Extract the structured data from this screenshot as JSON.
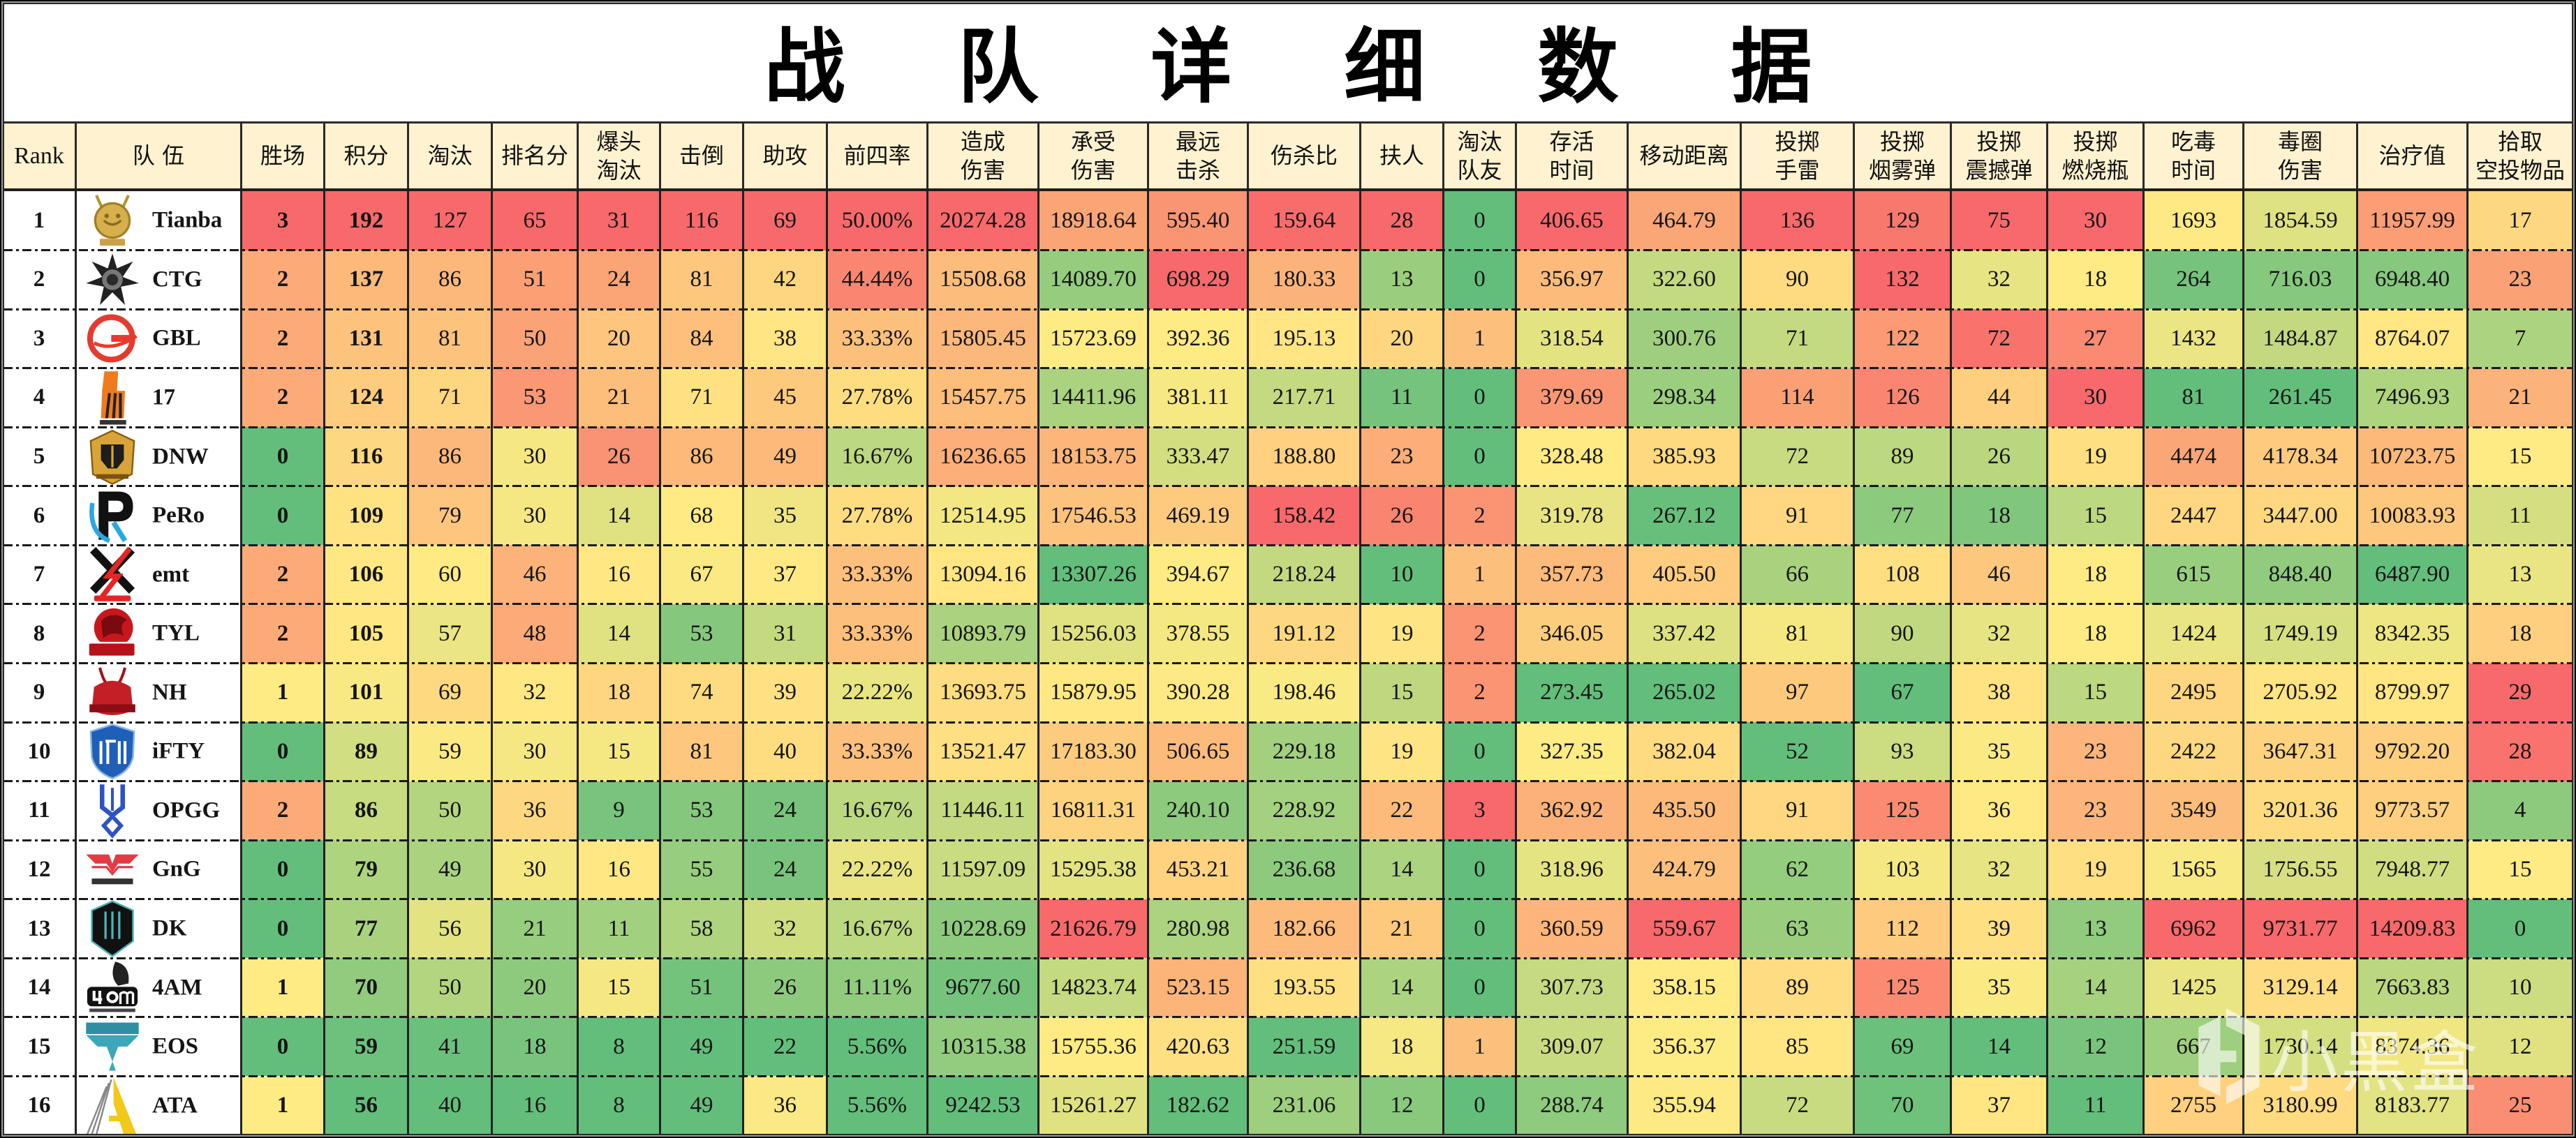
{
  "chart_data": {
    "type": "heatmap",
    "title": "战队详细数据",
    "color_scale": {
      "kind": "3-color",
      "red": "#F8696B",
      "yellow": "#FFEB84",
      "green": "#63BE7B",
      "midpoint": "percentile 50"
    },
    "columns": [
      {
        "key": "rank",
        "lines": [
          "Rank"
        ]
      },
      {
        "key": "team",
        "lines": [
          "队 伍"
        ]
      },
      {
        "key": "wins",
        "lines": [
          "胜场"
        ],
        "scale": "red_high"
      },
      {
        "key": "points",
        "lines": [
          "积分"
        ],
        "scale": "red_high"
      },
      {
        "key": "eliminations",
        "lines": [
          "淘汰"
        ],
        "scale": "red_high"
      },
      {
        "key": "placement-points",
        "lines": [
          "排名分"
        ],
        "scale": "red_high"
      },
      {
        "key": "headshot-kills",
        "lines": [
          "爆头",
          "淘汰"
        ],
        "scale": "red_high"
      },
      {
        "key": "knocks",
        "lines": [
          "击倒"
        ],
        "scale": "red_high"
      },
      {
        "key": "assists",
        "lines": [
          "助攻"
        ],
        "scale": "red_high"
      },
      {
        "key": "top4-rate",
        "lines": [
          "前四率"
        ],
        "scale": "red_high"
      },
      {
        "key": "damage-dealt",
        "lines": [
          "造成",
          "伤害"
        ],
        "scale": "red_high"
      },
      {
        "key": "damage-taken",
        "lines": [
          "承受",
          "伤害"
        ],
        "scale": "red_high"
      },
      {
        "key": "longest-kill",
        "lines": [
          "最远",
          "击杀"
        ],
        "scale": "red_high"
      },
      {
        "key": "damage-kill-ratio",
        "lines": [
          "伤杀比"
        ],
        "scale": "red_low"
      },
      {
        "key": "revives",
        "lines": [
          "扶人"
        ],
        "scale": "red_high"
      },
      {
        "key": "teamkills",
        "lines": [
          "淘汰",
          "队友"
        ],
        "scale": "red_high"
      },
      {
        "key": "survival-time",
        "lines": [
          "存活",
          "时间"
        ],
        "scale": "red_high"
      },
      {
        "key": "distance-moved",
        "lines": [
          "移动距离"
        ],
        "scale": "red_high"
      },
      {
        "key": "grenades",
        "lines": [
          "投掷",
          "手雷"
        ],
        "scale": "red_high"
      },
      {
        "key": "smokes",
        "lines": [
          "投掷",
          "烟雾弹"
        ],
        "scale": "red_high"
      },
      {
        "key": "flashbangs",
        "lines": [
          "投掷",
          "震撼弹"
        ],
        "scale": "red_high"
      },
      {
        "key": "molotovs",
        "lines": [
          "投掷",
          "燃烧瓶"
        ],
        "scale": "red_high"
      },
      {
        "key": "zone-time",
        "lines": [
          "吃毒",
          "时间"
        ],
        "scale": "red_high"
      },
      {
        "key": "zone-damage",
        "lines": [
          "毒圈",
          "伤害"
        ],
        "scale": "red_high"
      },
      {
        "key": "healing",
        "lines": [
          "治疗值"
        ],
        "scale": "red_high"
      },
      {
        "key": "airdrops",
        "lines": [
          "拾取",
          "空投物品"
        ],
        "scale": "red_high"
      }
    ],
    "rows": [
      {
        "rank": "1",
        "team": "Tianba",
        "logo": "tianba-logo-icon",
        "values": [
          "3",
          "192",
          "127",
          "65",
          "31",
          "116",
          "69",
          "50.00%",
          "20274.28",
          "18918.64",
          "595.40",
          "159.64",
          "28",
          "0",
          "406.65",
          "464.79",
          "136",
          "129",
          "75",
          "30",
          "1693",
          "1854.59",
          "11957.99",
          "17"
        ]
      },
      {
        "rank": "2",
        "team": "CTG",
        "logo": "ctg-logo-icon",
        "values": [
          "2",
          "137",
          "86",
          "51",
          "24",
          "81",
          "42",
          "44.44%",
          "15508.68",
          "14089.70",
          "698.29",
          "180.33",
          "13",
          "0",
          "356.97",
          "322.60",
          "90",
          "132",
          "32",
          "18",
          "264",
          "716.03",
          "6948.40",
          "23"
        ]
      },
      {
        "rank": "3",
        "team": "GBL",
        "logo": "gbl-logo-icon",
        "values": [
          "2",
          "131",
          "81",
          "50",
          "20",
          "84",
          "38",
          "33.33%",
          "15805.45",
          "15723.69",
          "392.36",
          "195.13",
          "20",
          "1",
          "318.54",
          "300.76",
          "71",
          "122",
          "72",
          "27",
          "1432",
          "1484.87",
          "8764.07",
          "7"
        ]
      },
      {
        "rank": "4",
        "team": "17",
        "logo": "17-gaming-logo-icon",
        "values": [
          "2",
          "124",
          "71",
          "53",
          "21",
          "71",
          "45",
          "27.78%",
          "15457.75",
          "14411.96",
          "381.11",
          "217.71",
          "11",
          "0",
          "379.69",
          "298.34",
          "114",
          "126",
          "44",
          "30",
          "81",
          "261.45",
          "7496.93",
          "21"
        ]
      },
      {
        "rank": "5",
        "team": "DNW",
        "logo": "dnw-logo-icon",
        "values": [
          "0",
          "116",
          "86",
          "30",
          "26",
          "86",
          "49",
          "16.67%",
          "16236.65",
          "18153.75",
          "333.47",
          "188.80",
          "23",
          "0",
          "328.48",
          "385.93",
          "72",
          "89",
          "26",
          "19",
          "4474",
          "4178.34",
          "10723.75",
          "15"
        ]
      },
      {
        "rank": "6",
        "team": "PeRo",
        "logo": "pero-logo-icon",
        "values": [
          "0",
          "109",
          "79",
          "30",
          "14",
          "68",
          "35",
          "27.78%",
          "12514.95",
          "17546.53",
          "469.19",
          "158.42",
          "26",
          "2",
          "319.78",
          "267.12",
          "91",
          "77",
          "18",
          "15",
          "2447",
          "3447.00",
          "10083.93",
          "11"
        ]
      },
      {
        "rank": "7",
        "team": "emt",
        "logo": "emt-logo-icon",
        "values": [
          "2",
          "106",
          "60",
          "46",
          "16",
          "67",
          "37",
          "33.33%",
          "13094.16",
          "13307.26",
          "394.67",
          "218.24",
          "10",
          "1",
          "357.73",
          "405.50",
          "66",
          "108",
          "46",
          "18",
          "615",
          "848.40",
          "6487.90",
          "13"
        ]
      },
      {
        "rank": "8",
        "team": "TYL",
        "logo": "tyl-logo-icon",
        "values": [
          "2",
          "105",
          "57",
          "48",
          "14",
          "53",
          "31",
          "33.33%",
          "10893.79",
          "15256.03",
          "378.55",
          "191.12",
          "19",
          "2",
          "346.05",
          "337.42",
          "81",
          "90",
          "32",
          "18",
          "1424",
          "1749.19",
          "8342.35",
          "18"
        ]
      },
      {
        "rank": "9",
        "team": "NH",
        "logo": "nh-logo-icon",
        "values": [
          "1",
          "101",
          "69",
          "32",
          "18",
          "74",
          "39",
          "22.22%",
          "13693.75",
          "15879.95",
          "390.28",
          "198.46",
          "15",
          "2",
          "273.45",
          "265.02",
          "97",
          "67",
          "38",
          "15",
          "2495",
          "2705.92",
          "8799.97",
          "29"
        ]
      },
      {
        "rank": "10",
        "team": "iFTY",
        "logo": "ifty-logo-icon",
        "values": [
          "0",
          "89",
          "59",
          "30",
          "15",
          "81",
          "40",
          "33.33%",
          "13521.47",
          "17183.30",
          "506.65",
          "229.18",
          "19",
          "0",
          "327.35",
          "382.04",
          "52",
          "93",
          "35",
          "23",
          "2422",
          "3647.31",
          "9792.20",
          "28"
        ]
      },
      {
        "rank": "11",
        "team": "OPGG",
        "logo": "opgg-logo-icon",
        "values": [
          "2",
          "86",
          "50",
          "36",
          "9",
          "53",
          "24",
          "16.67%",
          "11446.11",
          "16811.31",
          "240.10",
          "228.92",
          "22",
          "3",
          "362.92",
          "435.50",
          "91",
          "125",
          "36",
          "23",
          "3549",
          "3201.36",
          "9773.57",
          "4"
        ]
      },
      {
        "rank": "12",
        "team": "GnG",
        "logo": "gng-logo-icon",
        "values": [
          "0",
          "79",
          "49",
          "30",
          "16",
          "55",
          "24",
          "22.22%",
          "11597.09",
          "15295.38",
          "453.21",
          "236.68",
          "14",
          "0",
          "318.96",
          "424.79",
          "62",
          "103",
          "32",
          "19",
          "1565",
          "1756.55",
          "7948.77",
          "15"
        ]
      },
      {
        "rank": "13",
        "team": "DK",
        "logo": "dk-logo-icon",
        "values": [
          "0",
          "77",
          "56",
          "21",
          "11",
          "58",
          "32",
          "16.67%",
          "10228.69",
          "21626.79",
          "280.98",
          "182.66",
          "21",
          "0",
          "360.59",
          "559.67",
          "63",
          "112",
          "39",
          "13",
          "6962",
          "9731.77",
          "14209.83",
          "0"
        ]
      },
      {
        "rank": "14",
        "team": "4AM",
        "logo": "4am-logo-icon",
        "values": [
          "1",
          "70",
          "50",
          "20",
          "15",
          "51",
          "26",
          "11.11%",
          "9677.60",
          "14823.74",
          "523.15",
          "193.55",
          "14",
          "0",
          "307.73",
          "358.15",
          "89",
          "125",
          "35",
          "14",
          "1425",
          "3129.14",
          "7663.83",
          "10"
        ]
      },
      {
        "rank": "15",
        "team": "EOS",
        "logo": "eos-logo-icon",
        "values": [
          "0",
          "59",
          "41",
          "18",
          "8",
          "49",
          "22",
          "5.56%",
          "10315.38",
          "15755.36",
          "420.63",
          "251.59",
          "18",
          "1",
          "309.07",
          "356.37",
          "85",
          "69",
          "14",
          "12",
          "667",
          "1730.14",
          "8374.36",
          "12"
        ]
      },
      {
        "rank": "16",
        "team": "ATA",
        "logo": "ata-logo-icon",
        "values": [
          "1",
          "56",
          "40",
          "16",
          "8",
          "49",
          "36",
          "5.56%",
          "9242.53",
          "15261.27",
          "182.62",
          "231.06",
          "12",
          "0",
          "288.74",
          "355.94",
          "72",
          "70",
          "37",
          "11",
          "2755",
          "3180.99",
          "8183.77",
          "25"
        ]
      }
    ]
  },
  "watermark": {
    "text": "小黑盒",
    "icon": "xiaoheihe-logo-icon"
  }
}
